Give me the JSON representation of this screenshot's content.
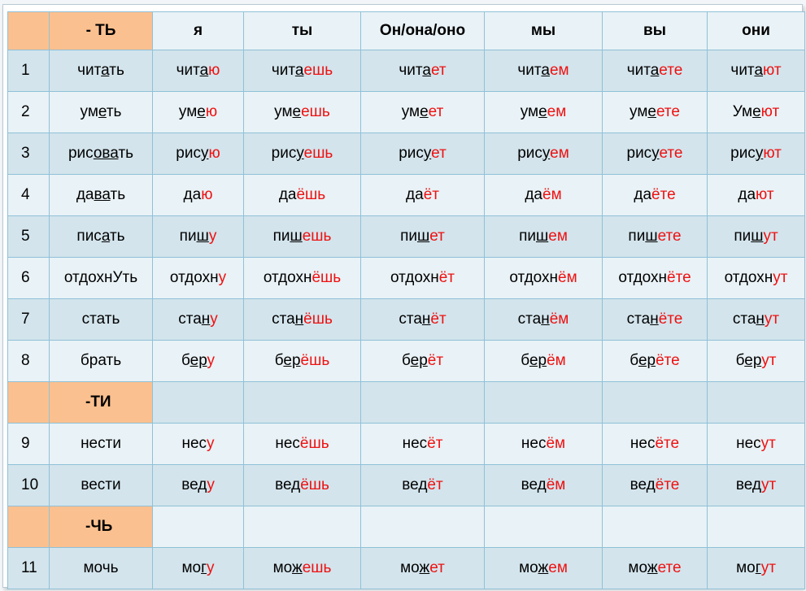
{
  "header": [
    "",
    "- ТЬ",
    "я",
    "ты",
    "Он/она/оно",
    "мы",
    "вы",
    "они"
  ],
  "sections": [
    {
      "label": "",
      "rows": [
        {
          "num": "1",
          "cells": [
            [
              {
                "t": "чит"
              },
              {
                "t": "а",
                "s": 1
              },
              {
                "t": "ть"
              }
            ],
            [
              {
                "t": "чит"
              },
              {
                "t": "а",
                "s": 1
              },
              {
                "t": "ю",
                "r": 1
              }
            ],
            [
              {
                "t": "чит"
              },
              {
                "t": "а",
                "s": 1
              },
              {
                "t": "ешь",
                "r": 1
              }
            ],
            [
              {
                "t": "чит"
              },
              {
                "t": "а",
                "s": 1
              },
              {
                "t": "ет",
                "r": 1
              }
            ],
            [
              {
                "t": "чит"
              },
              {
                "t": "а",
                "s": 1
              },
              {
                "t": "ем",
                "r": 1
              }
            ],
            [
              {
                "t": "чит"
              },
              {
                "t": "а",
                "s": 1
              },
              {
                "t": "ете",
                "r": 1
              }
            ],
            [
              {
                "t": "чит"
              },
              {
                "t": "а",
                "s": 1
              },
              {
                "t": "ют",
                "r": 1
              }
            ]
          ]
        },
        {
          "num": "2",
          "cells": [
            [
              {
                "t": "ум"
              },
              {
                "t": "е",
                "s": 1
              },
              {
                "t": "ть"
              }
            ],
            [
              {
                "t": "ум"
              },
              {
                "t": "е",
                "s": 1
              },
              {
                "t": "ю",
                "r": 1
              }
            ],
            [
              {
                "t": "ум"
              },
              {
                "t": "е",
                "s": 1
              },
              {
                "t": "ешь",
                "r": 1
              }
            ],
            [
              {
                "t": "ум"
              },
              {
                "t": "е",
                "s": 1
              },
              {
                "t": "ет",
                "r": 1
              }
            ],
            [
              {
                "t": "ум"
              },
              {
                "t": "е",
                "s": 1
              },
              {
                "t": "ем",
                "r": 1
              }
            ],
            [
              {
                "t": "ум"
              },
              {
                "t": "е",
                "s": 1
              },
              {
                "t": "ете",
                "r": 1
              }
            ],
            [
              {
                "t": "Ум"
              },
              {
                "t": "е",
                "s": 1
              },
              {
                "t": "ют",
                "r": 1
              }
            ]
          ]
        },
        {
          "num": "3",
          "cells": [
            [
              {
                "t": "рис"
              },
              {
                "t": "ова",
                "s": 1
              },
              {
                "t": "ть"
              }
            ],
            [
              {
                "t": "рис"
              },
              {
                "t": "у",
                "s": 1
              },
              {
                "t": "ю",
                "r": 1
              }
            ],
            [
              {
                "t": "рис"
              },
              {
                "t": "у",
                "s": 1
              },
              {
                "t": "ешь",
                "r": 1
              }
            ],
            [
              {
                "t": "рис"
              },
              {
                "t": "у",
                "s": 1
              },
              {
                "t": "ет",
                "r": 1
              }
            ],
            [
              {
                "t": "рис"
              },
              {
                "t": "у",
                "s": 1
              },
              {
                "t": "ем",
                "r": 1
              }
            ],
            [
              {
                "t": "рис"
              },
              {
                "t": "у",
                "s": 1
              },
              {
                "t": "ете",
                "r": 1
              }
            ],
            [
              {
                "t": "рис"
              },
              {
                "t": "у",
                "s": 1
              },
              {
                "t": "ют",
                "r": 1
              }
            ]
          ]
        },
        {
          "num": "4",
          "cells": [
            [
              {
                "t": "да"
              },
              {
                "t": "ва",
                "s": 1
              },
              {
                "t": "ть"
              }
            ],
            [
              {
                "t": "да"
              },
              {
                "t": "ю",
                "r": 1
              }
            ],
            [
              {
                "t": "да"
              },
              {
                "t": "ёшь",
                "r": 1
              }
            ],
            [
              {
                "t": "да"
              },
              {
                "t": "ёт",
                "r": 1
              }
            ],
            [
              {
                "t": "да"
              },
              {
                "t": "ём",
                "r": 1
              }
            ],
            [
              {
                "t": "да"
              },
              {
                "t": "ёте",
                "r": 1
              }
            ],
            [
              {
                "t": "да"
              },
              {
                "t": "ют",
                "r": 1
              }
            ]
          ]
        },
        {
          "num": "5",
          "cells": [
            [
              {
                "t": "пис"
              },
              {
                "t": "а",
                "s": 1
              },
              {
                "t": "ть"
              }
            ],
            [
              {
                "t": "пи"
              },
              {
                "t": "ш",
                "s": 1
              },
              {
                "t": "у",
                "r": 1
              }
            ],
            [
              {
                "t": "пи"
              },
              {
                "t": "ш",
                "s": 1
              },
              {
                "t": "ешь",
                "r": 1
              }
            ],
            [
              {
                "t": "пи"
              },
              {
                "t": "ш",
                "s": 1
              },
              {
                "t": "ет",
                "r": 1
              }
            ],
            [
              {
                "t": "пи"
              },
              {
                "t": "ш",
                "s": 1
              },
              {
                "t": "ем",
                "r": 1
              }
            ],
            [
              {
                "t": "пи"
              },
              {
                "t": "ш",
                "s": 1
              },
              {
                "t": "ете",
                "r": 1
              }
            ],
            [
              {
                "t": "пи"
              },
              {
                "t": "ш",
                "s": 1
              },
              {
                "t": "ут",
                "r": 1
              }
            ]
          ]
        },
        {
          "num": "6",
          "cells": [
            [
              {
                "t": "отдохнУть"
              }
            ],
            [
              {
                "t": "отдохн"
              },
              {
                "t": "у",
                "r": 1
              }
            ],
            [
              {
                "t": "отдохн"
              },
              {
                "t": "ёшь",
                "r": 1
              }
            ],
            [
              {
                "t": "отдохн"
              },
              {
                "t": "ёт",
                "r": 1
              }
            ],
            [
              {
                "t": "отдохн"
              },
              {
                "t": "ём",
                "r": 1
              }
            ],
            [
              {
                "t": "отдохн"
              },
              {
                "t": "ёте",
                "r": 1
              }
            ],
            [
              {
                "t": "отдохн"
              },
              {
                "t": "ут",
                "r": 1
              }
            ]
          ]
        },
        {
          "num": "7",
          "cells": [
            [
              {
                "t": "стать"
              }
            ],
            [
              {
                "t": "ста"
              },
              {
                "t": "н",
                "s": 1
              },
              {
                "t": "у",
                "r": 1
              }
            ],
            [
              {
                "t": "ста"
              },
              {
                "t": "н",
                "s": 1
              },
              {
                "t": "ёшь",
                "r": 1
              }
            ],
            [
              {
                "t": "ста"
              },
              {
                "t": "н",
                "s": 1
              },
              {
                "t": "ёт",
                "r": 1
              }
            ],
            [
              {
                "t": "ста"
              },
              {
                "t": "н",
                "s": 1
              },
              {
                "t": "ём",
                "r": 1
              }
            ],
            [
              {
                "t": "ста"
              },
              {
                "t": "н",
                "s": 1
              },
              {
                "t": "ёте",
                "r": 1
              }
            ],
            [
              {
                "t": "ста"
              },
              {
                "t": "н",
                "s": 1
              },
              {
                "t": "ут",
                "r": 1
              }
            ]
          ]
        },
        {
          "num": "8",
          "cells": [
            [
              {
                "t": "брать"
              }
            ],
            [
              {
                "t": "б"
              },
              {
                "t": "ер",
                "s": 1
              },
              {
                "t": "у",
                "r": 1
              }
            ],
            [
              {
                "t": "б"
              },
              {
                "t": "ер",
                "s": 1
              },
              {
                "t": "ёшь",
                "r": 1
              }
            ],
            [
              {
                "t": "б"
              },
              {
                "t": "ер",
                "s": 1
              },
              {
                "t": "ёт",
                "r": 1
              }
            ],
            [
              {
                "t": "б"
              },
              {
                "t": "ер",
                "s": 1
              },
              {
                "t": "ём",
                "r": 1
              }
            ],
            [
              {
                "t": "б"
              },
              {
                "t": "ер",
                "s": 1
              },
              {
                "t": "ёте",
                "r": 1
              }
            ],
            [
              {
                "t": "б"
              },
              {
                "t": "ер",
                "s": 1
              },
              {
                "t": "ут",
                "r": 1
              }
            ]
          ]
        }
      ]
    },
    {
      "label": "-ТИ",
      "rows": [
        {
          "num": "9",
          "cells": [
            [
              {
                "t": "нести"
              }
            ],
            [
              {
                "t": "нес"
              },
              {
                "t": "у",
                "r": 1
              }
            ],
            [
              {
                "t": "нес"
              },
              {
                "t": "ёшь",
                "r": 1
              }
            ],
            [
              {
                "t": "нес"
              },
              {
                "t": "ёт",
                "r": 1
              }
            ],
            [
              {
                "t": "нес"
              },
              {
                "t": "ём",
                "r": 1
              }
            ],
            [
              {
                "t": "нес"
              },
              {
                "t": "ёте",
                "r": 1
              }
            ],
            [
              {
                "t": "нес"
              },
              {
                "t": "ут",
                "r": 1
              }
            ]
          ]
        },
        {
          "num": "10",
          "cells": [
            [
              {
                "t": "вести"
              }
            ],
            [
              {
                "t": "ве"
              },
              {
                "t": "д",
                "s": 1
              },
              {
                "t": "у",
                "r": 1
              }
            ],
            [
              {
                "t": "ве"
              },
              {
                "t": "д",
                "s": 1
              },
              {
                "t": "ёшь",
                "r": 1
              }
            ],
            [
              {
                "t": "ве"
              },
              {
                "t": "д",
                "s": 1
              },
              {
                "t": "ёт",
                "r": 1
              }
            ],
            [
              {
                "t": "ве"
              },
              {
                "t": "д",
                "s": 1
              },
              {
                "t": "ём",
                "r": 1
              }
            ],
            [
              {
                "t": "ве"
              },
              {
                "t": "д",
                "s": 1
              },
              {
                "t": "ёте",
                "r": 1
              }
            ],
            [
              {
                "t": "ве"
              },
              {
                "t": "д",
                "s": 1
              },
              {
                "t": "ут",
                "r": 1
              }
            ]
          ]
        }
      ]
    },
    {
      "label": "-ЧЬ",
      "rows": [
        {
          "num": "11",
          "cells": [
            [
              {
                "t": "мочь"
              }
            ],
            [
              {
                "t": "мо"
              },
              {
                "t": "г",
                "s": 1
              },
              {
                "t": "у",
                "r": 1
              }
            ],
            [
              {
                "t": "мо"
              },
              {
                "t": "ж",
                "s": 1
              },
              {
                "t": "ешь",
                "r": 1
              }
            ],
            [
              {
                "t": "мо"
              },
              {
                "t": "ж",
                "s": 1
              },
              {
                "t": "ет",
                "r": 1
              }
            ],
            [
              {
                "t": "мо"
              },
              {
                "t": "ж",
                "s": 1
              },
              {
                "t": "ем",
                "r": 1
              }
            ],
            [
              {
                "t": "мо"
              },
              {
                "t": "ж",
                "s": 1
              },
              {
                "t": "ете",
                "r": 1
              }
            ],
            [
              {
                "t": "мо"
              },
              {
                "t": "г",
                "s": 1
              },
              {
                "t": "ут",
                "r": 1
              }
            ]
          ]
        }
      ]
    }
  ],
  "colors": {
    "peach": "#fbc08f",
    "row_dark": "#d3e4ec",
    "row_light": "#e9f2f6",
    "grid": "#8fc1d8",
    "ending_red": "#ee1111"
  }
}
